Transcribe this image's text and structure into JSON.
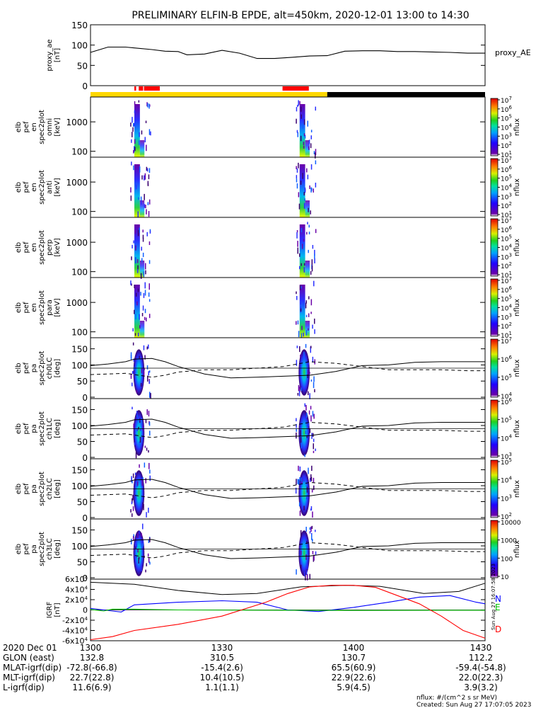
{
  "title": "PRELIMINARY ELFIN-B EPDE, alt=450km, 2020-12-01 13:00 to 14:30",
  "stamp": "Sun Aug 27 16:07:58 2023",
  "footer": {
    "flux_units": "nflux: #/(cm^2 s sr MeV)",
    "created": "Created: Sun Aug 27 17:07:05 2023"
  },
  "colors": {
    "science_zone": "#ff0000",
    "sunlit": "#ffd700",
    "shadow": "#000000",
    "N": "#0000ff",
    "E": "#00c000",
    "D": "#ff0000"
  },
  "time_axis": {
    "start": "13:00",
    "end": "14:30",
    "ticks": [
      "1300",
      "1330",
      "1400",
      "1430"
    ]
  },
  "ephemeris": {
    "row_labels": [
      "2020 Dec 01",
      "GLON (east)",
      "MLAT-igrf(dip)",
      "MLT-igrf(dip)",
      "L-igrf(dip)"
    ],
    "columns": [
      [
        "1300",
        "132.8",
        "-72.8(-66.8)",
        "22.7(22.8)",
        "11.6(6.9)"
      ],
      [
        "1330",
        "310.5",
        "-15.4(2.6)",
        "10.4(10.5)",
        "1.1(1.1)"
      ],
      [
        "1400",
        "130.7",
        "65.5(60.9)",
        "22.9(22.6)",
        "5.9(4.5)"
      ],
      [
        "1430",
        "112.2",
        "-59.4(-54.8)",
        "22.0(22.3)",
        "3.9(3.2)"
      ]
    ]
  },
  "chart_data": [
    {
      "type": "line",
      "panel": "proxy_ae",
      "ylabel_lines": [
        "proxy_ae",
        "[nT]"
      ],
      "legend": "proxy_AE",
      "ylim": [
        0,
        150
      ],
      "yticks": [
        "0",
        "50",
        "100",
        "150"
      ],
      "x_min": [
        0,
        4,
        8,
        10,
        14,
        17,
        20,
        22,
        26,
        30,
        34,
        38,
        42,
        46,
        50,
        54,
        58,
        62,
        66,
        70,
        74,
        78,
        82,
        86,
        90
      ],
      "y": [
        82,
        95,
        95,
        93,
        89,
        85,
        84,
        76,
        78,
        87,
        80,
        67,
        67,
        70,
        73,
        74,
        85,
        86,
        86,
        84,
        84,
        83,
        82,
        80,
        80
      ]
    },
    {
      "type": "heatmap",
      "panel": "spec_omni",
      "ylabel_lines": [
        "elb",
        "pef",
        "en",
        "spec2plot",
        "omni",
        "[keV]"
      ],
      "ylim": [
        63,
        7000
      ],
      "yscale": "log",
      "yticks": [
        "100",
        "1000"
      ],
      "cbar_ticks": [
        "10^1",
        "10^2",
        "10^3",
        "10^4",
        "10^5",
        "10^6",
        "10^7"
      ],
      "cbar_label": "nflux",
      "bursts_min": [
        [
          10.0,
          12.3
        ],
        [
          47.7,
          50.0
        ]
      ]
    },
    {
      "type": "heatmap",
      "panel": "spec_anti",
      "ylabel_lines": [
        "elb",
        "pef",
        "en",
        "spec2plot",
        "anti",
        "[keV]"
      ],
      "ylim": [
        63,
        7000
      ],
      "yscale": "log",
      "yticks": [
        "100",
        "1000"
      ],
      "cbar_ticks": [
        "10^1",
        "10^2",
        "10^3",
        "10^4",
        "10^5",
        "10^6",
        "10^7"
      ],
      "cbar_label": "nflux",
      "bursts_min": [
        [
          10.0,
          12.3
        ],
        [
          47.7,
          50.0
        ]
      ]
    },
    {
      "type": "heatmap",
      "panel": "spec_perp",
      "ylabel_lines": [
        "elb",
        "pef",
        "en",
        "spec2plot",
        "perp",
        "[keV]"
      ],
      "ylim": [
        63,
        7000
      ],
      "yscale": "log",
      "yticks": [
        "100",
        "1000"
      ],
      "cbar_ticks": [
        "10^1",
        "10^2",
        "10^3",
        "10^4",
        "10^5",
        "10^6",
        "10^7"
      ],
      "cbar_label": "nflux",
      "bursts_min": [
        [
          10.0,
          12.3
        ],
        [
          47.7,
          50.0
        ]
      ]
    },
    {
      "type": "heatmap",
      "panel": "spec_para",
      "ylabel_lines": [
        "elb",
        "pef",
        "en",
        "spec2plot",
        "para",
        "[keV]"
      ],
      "ylim": [
        63,
        7000
      ],
      "yscale": "log",
      "yticks": [
        "100",
        "1000"
      ],
      "cbar_ticks": [
        "10^1",
        "10^2",
        "10^3",
        "10^4",
        "10^5",
        "10^6",
        "10^7"
      ],
      "cbar_label": "nflux",
      "bursts_min": [
        [
          10.0,
          12.3
        ],
        [
          47.7,
          50.0
        ]
      ]
    },
    {
      "type": "heatmap",
      "panel": "pa_ch0",
      "ylabel_lines": [
        "elb",
        "pef",
        "pa",
        "spec2plot",
        "ch0LC",
        "[deg]"
      ],
      "ylim": [
        0,
        180
      ],
      "yticks": [
        "0",
        "50",
        "100",
        "150"
      ],
      "cbar_ticks": [
        "10^4",
        "10^5",
        "10^6",
        "10^7"
      ],
      "cbar_label": "nflux",
      "bursts_min": [
        [
          10.0,
          12.3
        ],
        [
          47.7,
          50.0
        ]
      ]
    },
    {
      "type": "heatmap",
      "panel": "pa_ch1",
      "ylabel_lines": [
        "elb",
        "pef",
        "pa",
        "spec2plot",
        "ch1LC",
        "[deg]"
      ],
      "ylim": [
        0,
        180
      ],
      "yticks": [
        "0",
        "50",
        "100",
        "150"
      ],
      "cbar_ticks": [
        "10^3",
        "10^4",
        "10^5",
        "10^6"
      ],
      "cbar_label": "nflux",
      "bursts_min": [
        [
          10.0,
          12.3
        ],
        [
          47.7,
          50.0
        ]
      ]
    },
    {
      "type": "heatmap",
      "panel": "pa_ch2",
      "ylabel_lines": [
        "elb",
        "pef",
        "pa",
        "spec2plot",
        "ch2LC",
        "[deg]"
      ],
      "ylim": [
        0,
        180
      ],
      "yticks": [
        "0",
        "50",
        "100",
        "150"
      ],
      "cbar_ticks": [
        "10^2",
        "10^3",
        "10^4",
        "10^5"
      ],
      "cbar_label": "nflux",
      "bursts_min": [
        [
          10.0,
          12.3
        ],
        [
          47.7,
          50.0
        ]
      ]
    },
    {
      "type": "heatmap",
      "panel": "pa_ch3",
      "ylabel_lines": [
        "elb",
        "pef",
        "pa",
        "spec2plot",
        "ch3LC",
        "[deg]"
      ],
      "ylim": [
        0,
        180
      ],
      "yticks": [
        "0",
        "50",
        "100",
        "150"
      ],
      "cbar_ticks": [
        "10",
        "100",
        "1000",
        "10000"
      ],
      "cbar_label": "nflux",
      "bursts_min": [
        [
          10.0,
          12.3
        ],
        [
          47.7,
          50.0
        ]
      ]
    },
    {
      "type": "line",
      "panel": "igrf",
      "ylabel_lines": [
        "IGRF",
        "[nT]"
      ],
      "ylim": [
        -60000,
        60000
      ],
      "yticks": [
        "-6x10^4",
        "-4x10^4",
        "-2x10^4",
        "0",
        "2x10^4",
        "4x10^4",
        "6x10^4"
      ],
      "series": [
        {
          "name": "N",
          "x_min": [
            0,
            3,
            5,
            7,
            10,
            20,
            30,
            38,
            45,
            52,
            60,
            68,
            75,
            82,
            88,
            90
          ],
          "values": [
            3000,
            0,
            -2000,
            -4000,
            10000,
            15000,
            18000,
            15000,
            0,
            -3000,
            5000,
            15000,
            25000,
            28000,
            15000,
            12000
          ]
        },
        {
          "name": "E",
          "x_min": [
            0,
            3,
            5,
            10,
            20,
            40,
            60,
            80,
            90
          ],
          "values": [
            1000,
            -2000,
            1500,
            1500,
            0,
            -500,
            -1000,
            -500,
            -500
          ]
        },
        {
          "name": "D",
          "x_min": [
            0,
            5,
            10,
            20,
            30,
            40,
            45,
            50,
            55,
            60,
            65,
            70,
            75,
            80,
            85,
            90
          ],
          "values": [
            -58000,
            -52000,
            -40000,
            -28000,
            -12000,
            15000,
            32000,
            45000,
            48000,
            48000,
            44000,
            28000,
            12000,
            -12000,
            -40000,
            -55000
          ]
        }
      ]
    },
    {
      "type": "line",
      "panel": "pa_guides",
      "description": "guide lines overlaid on pitch-angle panels (deg)",
      "x_min": [
        0,
        4,
        8,
        10,
        14,
        17,
        20,
        26,
        32,
        38,
        44,
        50,
        56,
        62,
        68,
        74,
        80,
        86,
        90
      ],
      "solid": [
        98,
        103,
        110,
        118,
        120,
        110,
        95,
        72,
        60,
        62,
        65,
        68,
        80,
        98,
        100,
        108,
        110,
        110,
        110
      ],
      "dashed": [
        70,
        72,
        74,
        70,
        62,
        68,
        78,
        85,
        85,
        90,
        95,
        110,
        105,
        95,
        85,
        85,
        85,
        82,
        82
      ]
    }
  ]
}
